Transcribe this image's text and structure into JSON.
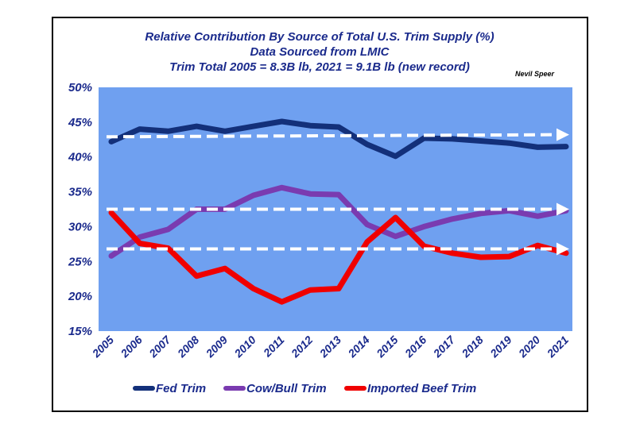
{
  "chart_data": {
    "type": "line",
    "title_lines": [
      "Relative Contribution By Source of Total U.S. Trim Supply (%)",
      "Data Sourced from LMIC",
      "Trim Total 2005 = 8.3B lb, 2021 = 9.1B lb (new record)"
    ],
    "author": "Nevil Speer",
    "x": [
      "2005",
      "2006",
      "2007",
      "2008",
      "2009",
      "2010",
      "2011",
      "2012",
      "2013",
      "2014",
      "2015",
      "2016",
      "2017",
      "2018",
      "2019",
      "2020",
      "2021"
    ],
    "ylim": [
      15,
      50
    ],
    "yticks": [
      15,
      20,
      25,
      30,
      35,
      40,
      45,
      50
    ],
    "ytick_labels": [
      "15%",
      "20%",
      "25%",
      "30%",
      "35%",
      "40%",
      "45%",
      "50%"
    ],
    "grid": false,
    "legend_position": "bottom",
    "plot_background": "#6fa0f0",
    "series": [
      {
        "name": "Fed Trim",
        "color": "#13307a",
        "values": [
          42.2,
          44.0,
          43.7,
          44.4,
          43.7,
          44.4,
          45.1,
          44.5,
          44.3,
          41.8,
          40.1,
          42.7,
          42.6,
          42.3,
          42.0,
          41.4,
          41.5
        ]
      },
      {
        "name": "Cow/Bull Trim",
        "color": "#7a3bb0",
        "values": [
          25.8,
          28.5,
          29.6,
          32.5,
          32.5,
          34.5,
          35.6,
          34.7,
          34.6,
          30.3,
          28.6,
          30.0,
          31.1,
          31.9,
          32.3,
          31.5,
          32.3
        ]
      },
      {
        "name": "Imported Beef Trim",
        "color": "#f00000",
        "values": [
          32.0,
          27.6,
          26.9,
          22.9,
          24.0,
          21.1,
          19.2,
          20.9,
          21.1,
          27.8,
          31.3,
          27.2,
          26.2,
          25.6,
          25.7,
          27.3,
          26.2
        ]
      }
    ],
    "trend_arrows": [
      {
        "from": [
          "2005",
          42.9
        ],
        "to": [
          "2021",
          43.2
        ],
        "color": "#ffffff"
      },
      {
        "from": [
          "2005",
          32.5
        ],
        "to": [
          "2021",
          32.5
        ],
        "color": "#ffffff"
      },
      {
        "from": [
          "2005",
          26.8
        ],
        "to": [
          "2021",
          26.8
        ],
        "color": "#ffffff"
      }
    ]
  }
}
